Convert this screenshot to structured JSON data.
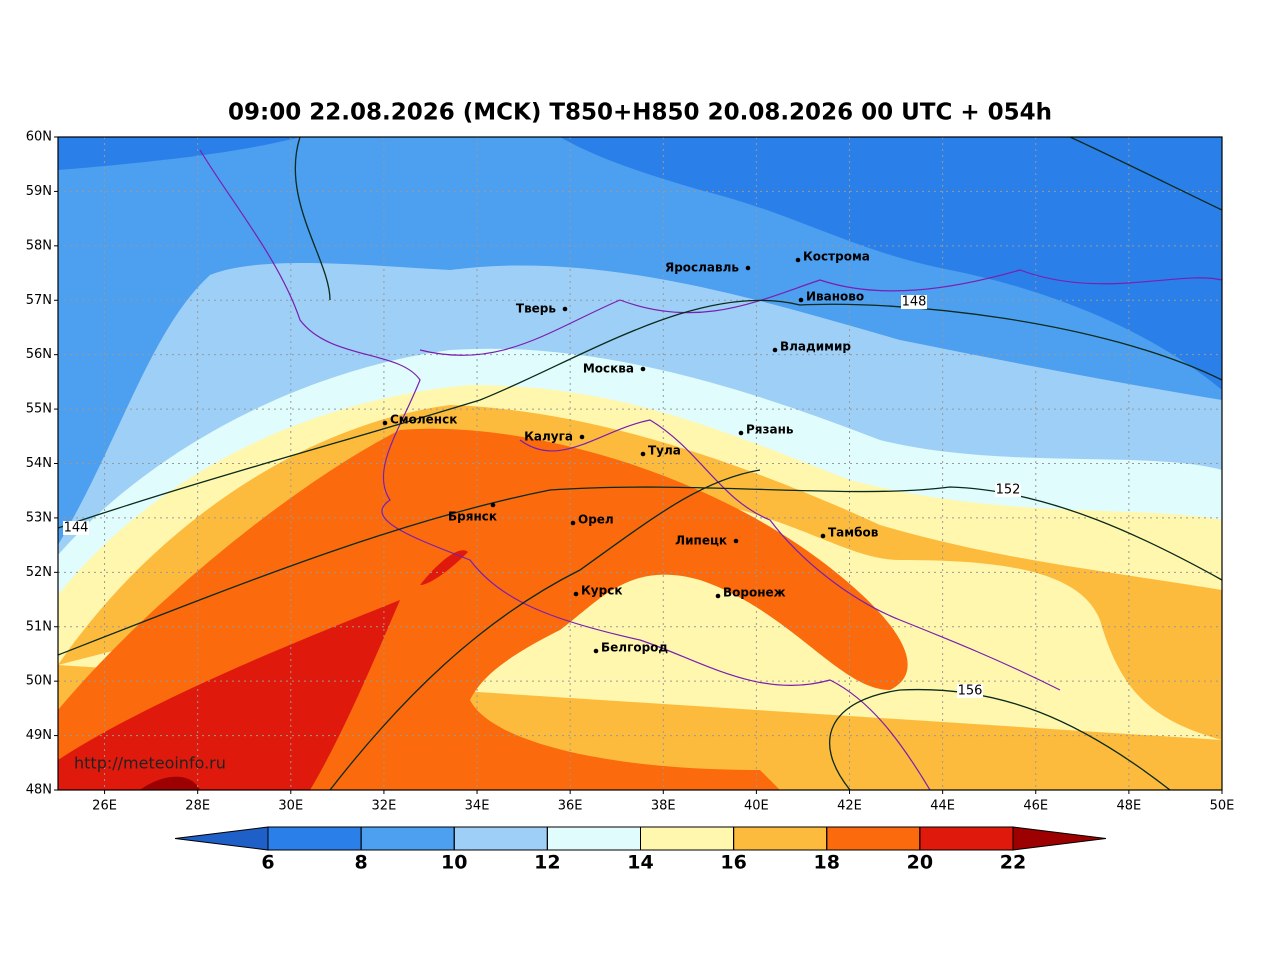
{
  "title": "09:00 22.08.2026 (MCK) T850+H850 20.08.2026 00 UTC + 054h",
  "map": {
    "lonlim": [
      25,
      50
    ],
    "latlim": [
      48,
      60
    ],
    "lat_ticks": [
      {
        "value": 60,
        "label": "60N"
      },
      {
        "value": 59,
        "label": "59N"
      },
      {
        "value": 58,
        "label": "58N"
      },
      {
        "value": 57,
        "label": "57N"
      },
      {
        "value": 56,
        "label": "56N"
      },
      {
        "value": 55,
        "label": "55N"
      },
      {
        "value": 54,
        "label": "54N"
      },
      {
        "value": 53,
        "label": "53N"
      },
      {
        "value": 52,
        "label": "52N"
      },
      {
        "value": 51,
        "label": "51N"
      },
      {
        "value": 50,
        "label": "50N"
      },
      {
        "value": 49,
        "label": "49N"
      },
      {
        "value": 48,
        "label": "48N"
      }
    ],
    "lon_ticks": [
      {
        "value": 26,
        "label": "26E"
      },
      {
        "value": 28,
        "label": "28E"
      },
      {
        "value": 30,
        "label": "30E"
      },
      {
        "value": 32,
        "label": "32E"
      },
      {
        "value": 34,
        "label": "34E"
      },
      {
        "value": 36,
        "label": "36E"
      },
      {
        "value": 38,
        "label": "38E"
      },
      {
        "value": 40,
        "label": "40E"
      },
      {
        "value": 42,
        "label": "42E"
      },
      {
        "value": 44,
        "label": "44E"
      },
      {
        "value": 46,
        "label": "46E"
      },
      {
        "value": 48,
        "label": "48E"
      },
      {
        "value": 50,
        "label": "50E"
      }
    ],
    "cities": [
      "Кострома",
      "Ярославль",
      "Иваново",
      "Тверь",
      "Владимир",
      "Москва",
      "Рязань",
      "Смоленск",
      "Калуга",
      "Тула",
      "Брянск",
      "Орел",
      "Липецк",
      "Тамбов",
      "Курск",
      "Воронеж",
      "Белгород"
    ],
    "contour_labels": [
      144,
      148,
      152,
      156
    ],
    "url": "http://meteoinfo.ru"
  },
  "colorbar": {
    "ticks": [
      6,
      8,
      10,
      12,
      14,
      16,
      18,
      20,
      22
    ],
    "colors": [
      "#1f5fc8",
      "#2b7fe8",
      "#4d9ff0",
      "#9ecff6",
      "#e0fcfc",
      "#fff7ae",
      "#fdbb3d",
      "#fb6a0c",
      "#e0190d",
      "#9c0000"
    ]
  }
}
